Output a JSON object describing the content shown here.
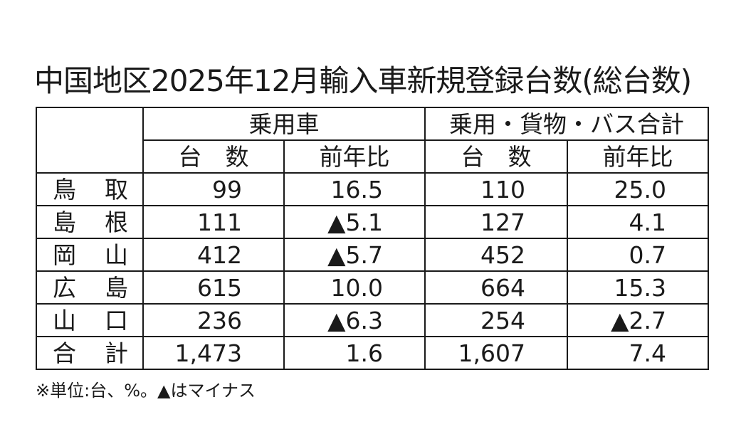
{
  "title": "中国地区2025年12月輸入車新規登録台数(総台数)",
  "table": {
    "group_headers": [
      "乗用車",
      "乗用・貨物・バス合計"
    ],
    "sub_headers": [
      "台　数",
      "前年比",
      "台　数",
      "前年比"
    ],
    "rows": [
      {
        "name": "鳥取",
        "car_count": "99",
        "car_yoy": "16.5",
        "total_count": "110",
        "total_yoy": "25.0"
      },
      {
        "name": "島根",
        "car_count": "111",
        "car_yoy": "▲5.1",
        "total_count": "127",
        "total_yoy": "4.1"
      },
      {
        "name": "岡山",
        "car_count": "412",
        "car_yoy": "▲5.7",
        "total_count": "452",
        "total_yoy": "0.7"
      },
      {
        "name": "広島",
        "car_count": "615",
        "car_yoy": "10.0",
        "total_count": "664",
        "total_yoy": "15.3"
      },
      {
        "name": "山口",
        "car_count": "236",
        "car_yoy": "▲6.3",
        "total_count": "254",
        "total_yoy": "▲2.7"
      },
      {
        "name": "合計",
        "car_count": "1,473",
        "car_yoy": "1.6",
        "total_count": "1,607",
        "total_yoy": "7.4"
      }
    ]
  },
  "note": "※単位:台、%。▲はマイナス"
}
